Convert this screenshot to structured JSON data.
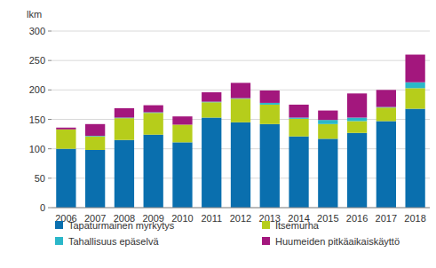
{
  "chart_data": {
    "type": "bar",
    "stacked": true,
    "ylabel": "lkm",
    "categories": [
      "2006",
      "2007",
      "2008",
      "2009",
      "2010",
      "2011",
      "2012",
      "2013",
      "2014",
      "2015",
      "2016",
      "2017",
      "2018"
    ],
    "series": [
      {
        "name": "Tapaturmainen myrkytys",
        "color": "#0a6fae",
        "values": [
          100,
          98,
          115,
          124,
          111,
          153,
          145,
          142,
          121,
          117,
          127,
          147,
          168
        ]
      },
      {
        "name": "Itsemurha",
        "color": "#b6cd1b",
        "values": [
          33,
          23,
          37,
          37,
          30,
          26,
          40,
          33,
          30,
          25,
          20,
          23,
          35
        ]
      },
      {
        "name": "Tahallisuus epäselvä",
        "color": "#2bb7c9",
        "values": [
          0,
          1,
          1,
          1,
          0,
          1,
          1,
          3,
          2,
          7,
          6,
          1,
          10
        ]
      },
      {
        "name": "Huumeiden pitkäaikaiskäyttö",
        "color": "#a3177d",
        "values": [
          3,
          20,
          16,
          12,
          14,
          16,
          26,
          21,
          22,
          16,
          41,
          29,
          47
        ]
      }
    ],
    "ylim": [
      0,
      300
    ],
    "yticks": [
      0,
      50,
      100,
      150,
      200,
      250,
      300
    ],
    "grid": true,
    "legend": "bottom"
  }
}
